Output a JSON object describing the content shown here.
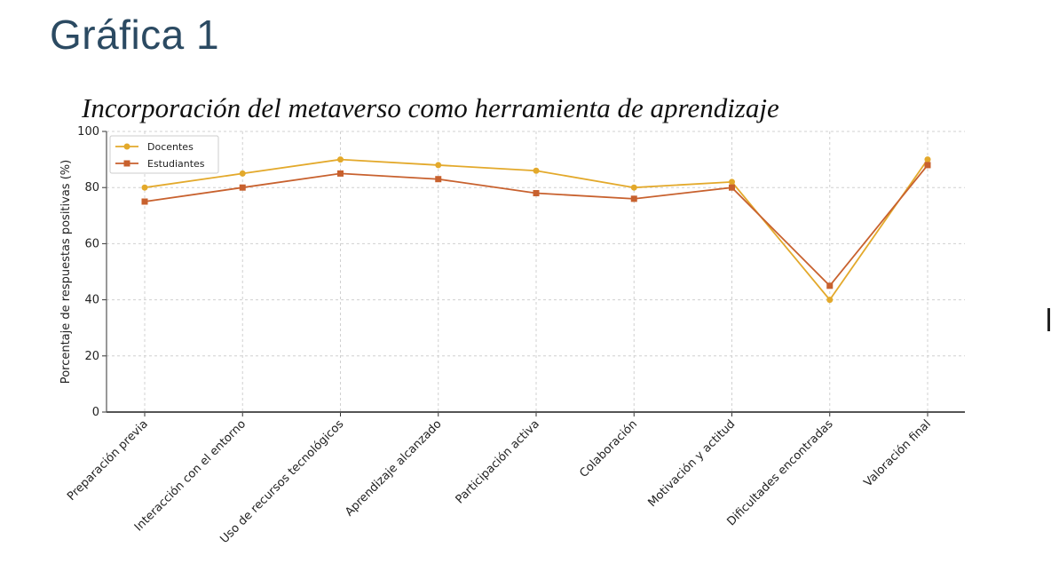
{
  "page": {
    "heading": "Gráfica 1"
  },
  "chart_data": {
    "type": "line",
    "title": "Incorporación del metaverso como herramienta de aprendizaje",
    "xlabel": "",
    "ylabel": "Porcentaje de respuestas positivas (%)",
    "ylim": [
      0,
      100
    ],
    "yticks": [
      0,
      20,
      40,
      60,
      80,
      100
    ],
    "grid": true,
    "legend_position": "top-left",
    "categories": [
      "Preparación previa",
      "Interacción con el entorno",
      "Uso de recursos tecnológicos",
      "Aprendizaje alcanzado",
      "Participación activa",
      "Colaboración",
      "Motivación y actitud",
      "Dificultades encontradas",
      "Valoración final"
    ],
    "series": [
      {
        "name": "Docentes",
        "color": "#e3a92b",
        "marker": "circle",
        "values": [
          80,
          85,
          90,
          88,
          86,
          80,
          82,
          40,
          90
        ]
      },
      {
        "name": "Estudiantes",
        "color": "#c8612e",
        "marker": "square",
        "values": [
          75,
          80,
          85,
          83,
          78,
          76,
          80,
          45,
          88
        ]
      }
    ]
  }
}
